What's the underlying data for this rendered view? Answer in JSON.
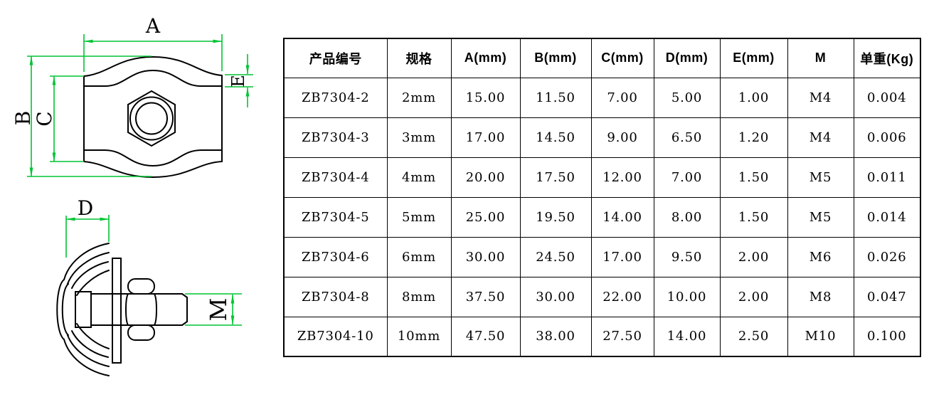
{
  "drawing": {
    "dim_color": "#00c433",
    "line_color": "#000000",
    "labels": {
      "A": "A",
      "B": "B",
      "C": "C",
      "E": "E",
      "D": "D",
      "M": "M"
    }
  },
  "table": {
    "headers": [
      "产品编号",
      "规格",
      "A(mm)",
      "B(mm)",
      "C(mm)",
      "D(mm)",
      "E(mm)",
      "M",
      "单重(Kg)"
    ],
    "rows": [
      [
        "ZB7304-2",
        "2mm",
        "15.00",
        "11.50",
        "7.00",
        "5.00",
        "1.00",
        "M4",
        "0.004"
      ],
      [
        "ZB7304-3",
        "3mm",
        "17.00",
        "14.50",
        "9.00",
        "6.50",
        "1.20",
        "M4",
        "0.006"
      ],
      [
        "ZB7304-4",
        "4mm",
        "20.00",
        "17.50",
        "12.00",
        "7.00",
        "1.50",
        "M5",
        "0.011"
      ],
      [
        "ZB7304-5",
        "5mm",
        "25.00",
        "19.50",
        "14.00",
        "8.00",
        "1.50",
        "M5",
        "0.014"
      ],
      [
        "ZB7304-6",
        "6mm",
        "30.00",
        "24.50",
        "17.00",
        "9.50",
        "2.00",
        "M6",
        "0.026"
      ],
      [
        "ZB7304-8",
        "8mm",
        "37.50",
        "30.00",
        "22.00",
        "10.00",
        "2.00",
        "M8",
        "0.047"
      ],
      [
        "ZB7304-10",
        "10mm",
        "47.50",
        "38.00",
        "27.50",
        "14.00",
        "2.50",
        "M10",
        "0.100"
      ]
    ]
  }
}
